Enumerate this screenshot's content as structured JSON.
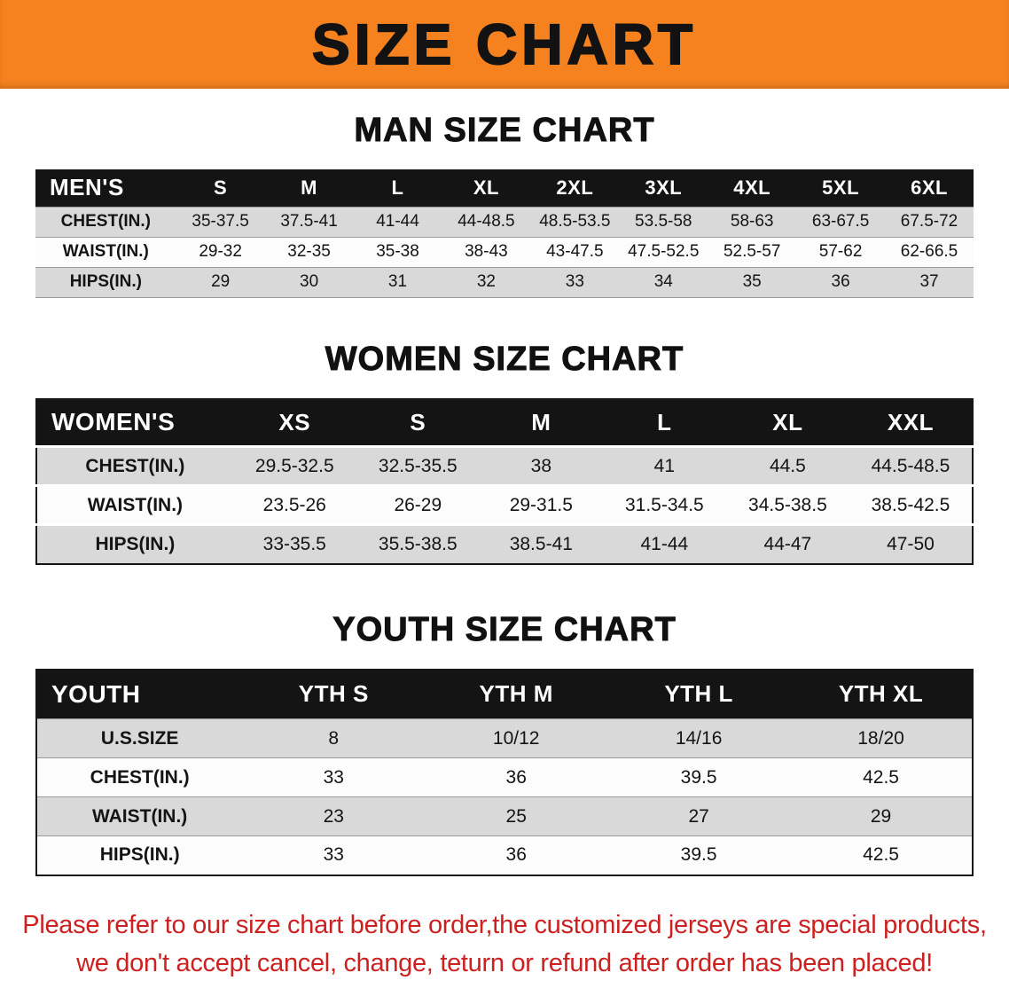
{
  "banner": {
    "title": "SIZE CHART"
  },
  "colors": {
    "banner_bg": "#F5821F",
    "table_header_bg": "#141414",
    "row_alt": "#D9D9D9",
    "note_red": "#CC2121"
  },
  "men": {
    "heading": "MAN SIZE CHART",
    "table": {
      "header": [
        "MEN'S",
        "S",
        "M",
        "L",
        "XL",
        "2XL",
        "3XL",
        "4XL",
        "5XL",
        "6XL"
      ],
      "rows": [
        [
          "CHEST(IN.)",
          "35-37.5",
          "37.5-41",
          "41-44",
          "44-48.5",
          "48.5-53.5",
          "53.5-58",
          "58-63",
          "63-67.5",
          "67.5-72"
        ],
        [
          "WAIST(IN.)",
          "29-32",
          "32-35",
          "35-38",
          "38-43",
          "43-47.5",
          "47.5-52.5",
          "52.5-57",
          "57-62",
          "62-66.5"
        ],
        [
          "HIPS(IN.)",
          "29",
          "30",
          "31",
          "32",
          "33",
          "34",
          "35",
          "36",
          "37"
        ]
      ]
    }
  },
  "women": {
    "heading": "WOMEN SIZE CHART",
    "table": {
      "header": [
        "WOMEN'S",
        "XS",
        "S",
        "M",
        "L",
        "XL",
        "XXL"
      ],
      "rows": [
        [
          "CHEST(IN.)",
          "29.5-32.5",
          "32.5-35.5",
          "38",
          "41",
          "44.5",
          "44.5-48.5"
        ],
        [
          "WAIST(IN.)",
          "23.5-26",
          "26-29",
          "29-31.5",
          "31.5-34.5",
          "34.5-38.5",
          "38.5-42.5"
        ],
        [
          "HIPS(IN.)",
          "33-35.5",
          "35.5-38.5",
          "38.5-41",
          "41-44",
          "44-47",
          "47-50"
        ]
      ]
    }
  },
  "youth": {
    "heading": "YOUTH SIZE CHART",
    "table": {
      "header": [
        "YOUTH",
        "YTH S",
        "YTH M",
        "YTH L",
        "YTH XL"
      ],
      "rows": [
        [
          "U.S.SIZE",
          "8",
          "10/12",
          "14/16",
          "18/20"
        ],
        [
          "CHEST(IN.)",
          "33",
          "36",
          "39.5",
          "42.5"
        ],
        [
          "WAIST(IN.)",
          "23",
          "25",
          "27",
          "29"
        ],
        [
          "HIPS(IN.)",
          "33",
          "36",
          "39.5",
          "42.5"
        ]
      ]
    }
  },
  "note": {
    "line1": "Please refer to our size chart before order,the customized jerseys are special products,",
    "line2": "we don't accept cancel, change, teturn or refund after order has been placed!"
  }
}
